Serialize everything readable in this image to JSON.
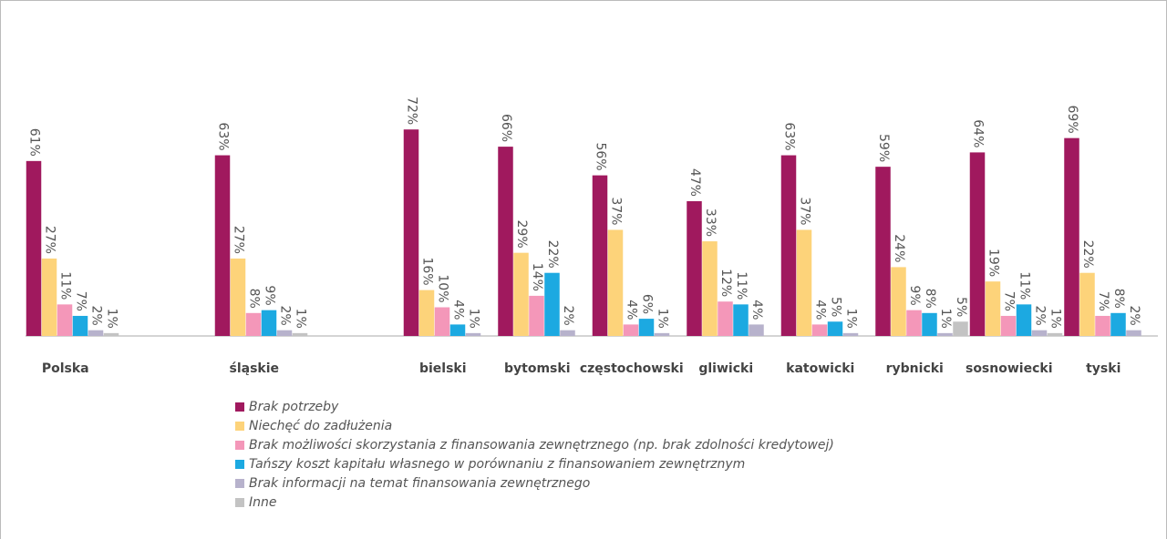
{
  "chart_data": {
    "type": "bar",
    "categories": [
      "Polska",
      null,
      "śląskie",
      null,
      "bielski",
      "bytomski",
      "częstochowski",
      "gliwicki",
      "katowicki",
      "rybnicki",
      "sosnowiecki",
      "tyski"
    ],
    "series": [
      {
        "name": "Brak potrzeby",
        "color": "#a0195e",
        "values": [
          61,
          null,
          63,
          null,
          72,
          66,
          56,
          47,
          63,
          59,
          64,
          69
        ],
        "value_labels": [
          "61%",
          null,
          "63%",
          null,
          "72%",
          "66%",
          "56%",
          "47%",
          "63%",
          "59%",
          "64%",
          "69%"
        ]
      },
      {
        "name": "Niechęć do zadłużenia",
        "color": "#fdd37a",
        "values": [
          27,
          null,
          27,
          null,
          16,
          29,
          37,
          33,
          37,
          24,
          19,
          22
        ],
        "value_labels": [
          "27%",
          null,
          "27%",
          null,
          "16%",
          "29%",
          "37%",
          "33%",
          "37%",
          "24%",
          "19%",
          "22%"
        ]
      },
      {
        "name": "Brak możliwości skorzystania z finansowania zewnętrznego (np. brak zdolności kredytowej)",
        "color": "#f497b9",
        "values": [
          11,
          null,
          8,
          null,
          10,
          14,
          4,
          12,
          4,
          9,
          7,
          7
        ],
        "value_labels": [
          "11%",
          null,
          "8%",
          null,
          "10%",
          "14%",
          "4%",
          "12%",
          "4%",
          "9%",
          "7%",
          "7%"
        ]
      },
      {
        "name": "Tańszy koszt kapitału własnego w porównaniu z finansowaniem zewnętrznym",
        "color": "#1ca9e1",
        "values": [
          7,
          null,
          9,
          null,
          4,
          22,
          6,
          11,
          5,
          8,
          11,
          8
        ],
        "value_labels": [
          "7%",
          null,
          "9%",
          null,
          "4%",
          "22%",
          "6%",
          "11%",
          "5%",
          "8%",
          "11%",
          "8%"
        ]
      },
      {
        "name": "Brak informacji na temat finansowania zewnętrznego",
        "color": "#b7b2cc",
        "values": [
          2,
          null,
          2,
          null,
          1,
          2,
          1,
          4,
          1,
          1,
          2,
          2
        ],
        "value_labels": [
          "2%",
          null,
          "2%",
          null,
          "1%",
          "2%",
          "1%",
          "4%",
          "1%",
          "1%",
          "2%",
          "2%"
        ]
      },
      {
        "name": "Inne",
        "color": "#c3c3c3",
        "values": [
          1,
          null,
          1,
          null,
          null,
          null,
          null,
          null,
          null,
          5,
          1,
          null
        ],
        "value_labels": [
          "1%",
          null,
          "1%",
          null,
          null,
          null,
          null,
          null,
          null,
          "5%",
          "1%",
          null
        ]
      }
    ],
    "ylim": [
      0,
      100
    ]
  }
}
